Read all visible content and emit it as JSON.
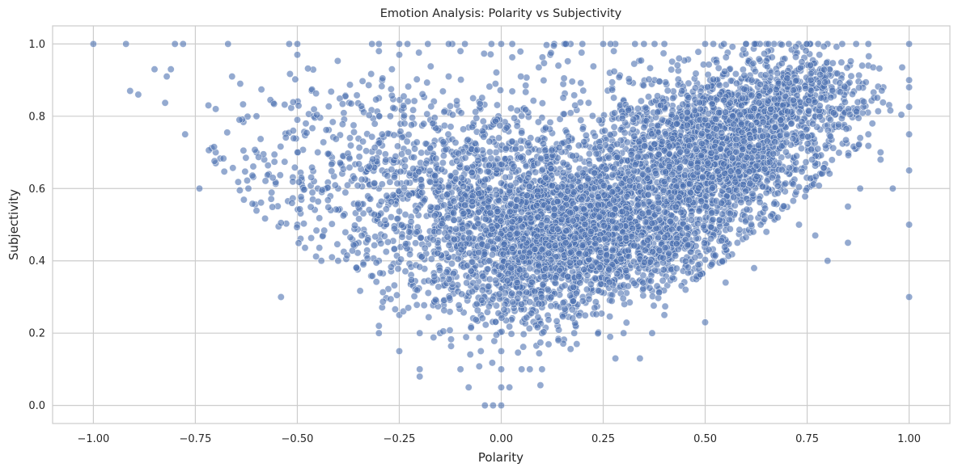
{
  "chart_data": {
    "type": "scatter",
    "title": "Emotion Analysis: Polarity vs Subjectivity",
    "xlabel": "Polarity",
    "ylabel": "Subjectivity",
    "xlim": [
      -1.1,
      1.1
    ],
    "ylim": [
      -0.05,
      1.05
    ],
    "xticks": [
      -1.0,
      -0.75,
      -0.5,
      -0.25,
      0.0,
      0.25,
      0.5,
      0.75,
      1.0
    ],
    "xtick_labels": [
      "−1.00",
      "−0.75",
      "−0.50",
      "−0.25",
      "0.00",
      "0.25",
      "0.50",
      "0.75",
      "1.00"
    ],
    "yticks": [
      0.0,
      0.2,
      0.4,
      0.6,
      0.8,
      1.0
    ],
    "ytick_labels": [
      "0.0",
      "0.2",
      "0.4",
      "0.6",
      "0.8",
      "1.0"
    ],
    "grid": true,
    "point_color": "#4c72b0",
    "point_alpha": 0.6,
    "point_edge_color": "#ffffff",
    "series": [
      {
        "values_note_free": true,
        "points": [
          [
            -1.0,
            1.0
          ],
          [
            -0.92,
            1.0
          ],
          [
            -0.8,
            1.0
          ],
          [
            -0.78,
            1.0
          ],
          [
            -0.67,
            1.0
          ],
          [
            -0.52,
            1.0
          ],
          [
            -0.5,
            1.0
          ],
          [
            -0.3,
            1.0
          ],
          [
            -0.25,
            1.0
          ],
          [
            -0.23,
            1.0
          ],
          [
            -0.18,
            1.0
          ],
          [
            -0.12,
            1.0
          ],
          [
            0.0,
            1.0
          ],
          [
            0.13,
            1.0
          ],
          [
            0.17,
            1.0
          ],
          [
            0.25,
            1.0
          ],
          [
            0.35,
            1.0
          ],
          [
            0.4,
            1.0
          ],
          [
            0.5,
            1.0
          ],
          [
            0.52,
            1.0
          ],
          [
            0.6,
            1.0
          ],
          [
            0.65,
            1.0
          ],
          [
            0.75,
            1.0
          ],
          [
            0.8,
            1.0
          ],
          [
            0.87,
            1.0
          ],
          [
            0.9,
            1.0
          ],
          [
            1.0,
            1.0
          ],
          [
            -0.85,
            0.93
          ],
          [
            -0.81,
            0.93
          ],
          [
            -0.82,
            0.91
          ],
          [
            -0.91,
            0.87
          ],
          [
            -0.89,
            0.86
          ],
          [
            -0.5,
            0.97
          ],
          [
            -0.3,
            0.98
          ],
          [
            -0.25,
            0.97
          ],
          [
            -0.1,
            0.98
          ],
          [
            0.12,
            0.97
          ],
          [
            0.14,
            0.94
          ],
          [
            0.78,
            0.97
          ],
          [
            0.8,
            0.95
          ],
          [
            0.9,
            0.94
          ],
          [
            1.0,
            0.9
          ],
          [
            1.0,
            0.88
          ],
          [
            1.0,
            0.75
          ],
          [
            1.0,
            0.65
          ],
          [
            1.0,
            0.5
          ],
          [
            1.0,
            0.3
          ],
          [
            0.96,
            0.6
          ],
          [
            0.93,
            0.7
          ],
          [
            0.93,
            0.68
          ],
          [
            0.91,
            0.78
          ],
          [
            0.9,
            0.75
          ],
          [
            0.88,
            0.6
          ],
          [
            0.85,
            0.55
          ],
          [
            0.85,
            0.45
          ],
          [
            0.8,
            0.4
          ],
          [
            0.8,
            0.65
          ],
          [
            0.77,
            0.47
          ],
          [
            0.73,
            0.5
          ],
          [
            0.65,
            0.48
          ],
          [
            0.62,
            0.38
          ],
          [
            0.55,
            0.34
          ],
          [
            0.5,
            0.23
          ],
          [
            0.47,
            0.35
          ],
          [
            0.3,
            0.2
          ],
          [
            0.34,
            0.13
          ],
          [
            0.28,
            0.13
          ],
          [
            0.37,
            0.2
          ],
          [
            0.4,
            0.25
          ],
          [
            -0.7,
            0.67
          ],
          [
            -0.7,
            0.7
          ],
          [
            -0.74,
            0.6
          ],
          [
            -0.7,
            0.82
          ],
          [
            -0.66,
            0.91
          ],
          [
            -0.64,
            0.89
          ],
          [
            -0.6,
            0.8
          ],
          [
            -0.6,
            0.7
          ],
          [
            -0.62,
            0.6
          ],
          [
            -0.57,
            0.64
          ],
          [
            -0.54,
            0.3
          ],
          [
            -0.5,
            0.5
          ],
          [
            -0.5,
            0.7
          ],
          [
            -0.5,
            0.79
          ],
          [
            -0.45,
            0.7
          ],
          [
            -0.45,
            0.6
          ],
          [
            -0.4,
            0.6
          ],
          [
            -0.4,
            0.4
          ],
          [
            -0.35,
            0.45
          ],
          [
            -0.3,
            0.2
          ],
          [
            -0.3,
            0.22
          ],
          [
            -0.3,
            0.4
          ],
          [
            -0.3,
            0.6
          ],
          [
            -0.3,
            0.7
          ],
          [
            -0.3,
            0.8
          ],
          [
            -0.3,
            0.85
          ],
          [
            -0.25,
            0.15
          ],
          [
            -0.25,
            0.25
          ],
          [
            -0.25,
            0.5
          ],
          [
            -0.25,
            0.75
          ],
          [
            -0.2,
            0.1
          ],
          [
            -0.2,
            0.08
          ],
          [
            -0.2,
            0.2
          ],
          [
            -0.2,
            0.6
          ],
          [
            -0.15,
            0.2
          ],
          [
            -0.1,
            0.1
          ],
          [
            -0.08,
            0.05
          ],
          [
            -0.05,
            0.15
          ],
          [
            -0.05,
            0.25
          ],
          [
            -0.04,
            0.0
          ],
          [
            -0.02,
            0.0
          ],
          [
            0.0,
            0.0
          ],
          [
            0.0,
            0.05
          ],
          [
            0.0,
            0.1
          ],
          [
            0.0,
            0.15
          ],
          [
            0.0,
            0.25
          ],
          [
            0.0,
            0.3
          ],
          [
            0.02,
            0.05
          ],
          [
            0.05,
            0.1
          ],
          [
            0.07,
            0.1
          ],
          [
            0.1,
            0.1
          ],
          [
            0.1,
            0.2
          ],
          [
            0.15,
            0.25
          ],
          [
            0.2,
            0.3
          ]
        ]
      }
    ],
    "cloud": [
      {
        "cx": 0.2,
        "cy": 0.5,
        "sx": 0.2,
        "sy": 0.1,
        "n": 2400
      },
      {
        "cx": 0.52,
        "cy": 0.72,
        "sx": 0.13,
        "sy": 0.1,
        "n": 1500
      },
      {
        "cx": 0.0,
        "cy": 0.6,
        "sx": 0.25,
        "sy": 0.16,
        "n": 1100
      },
      {
        "cx": -0.35,
        "cy": 0.67,
        "sx": 0.16,
        "sy": 0.12,
        "n": 250
      },
      {
        "cx": 0.05,
        "cy": 0.32,
        "sx": 0.13,
        "sy": 0.08,
        "n": 350
      },
      {
        "cx": 0.72,
        "cy": 0.86,
        "sx": 0.1,
        "sy": 0.07,
        "n": 500
      }
    ]
  }
}
